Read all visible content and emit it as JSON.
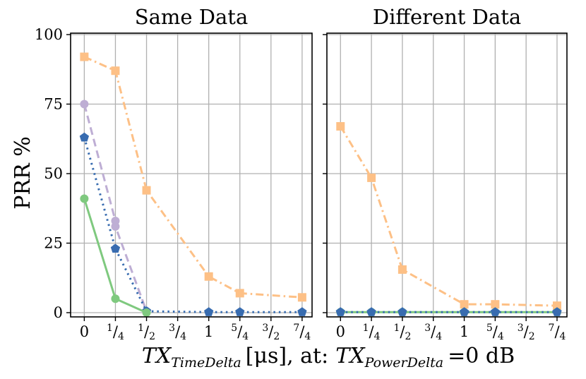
{
  "figure": {
    "xlabel_main": "TX",
    "xlabel_main_sub": "TimeDelta",
    "xlabel_unit": "[μs], at:",
    "xlabel_power": "TX",
    "xlabel_power_sub": "PowerDelta",
    "xlabel_tail": "=0 dB",
    "ylabel": "PRR %"
  },
  "chart_data": [
    {
      "type": "line",
      "title": "Same Data",
      "x": [
        0,
        0.25,
        0.5,
        0.75,
        1,
        1.25,
        1.5,
        1.75
      ],
      "xtick_labels": [
        "0",
        "1/4",
        "1/2",
        "3/4",
        "1",
        "5/4",
        "3/2",
        "7/4"
      ],
      "yticks": [
        0,
        25,
        50,
        75,
        100
      ],
      "ylim": [
        0,
        100
      ],
      "grid": true,
      "series": [
        {
          "color": "#fdc086",
          "marker": "square",
          "dash": "dashdot",
          "x": [
            0,
            0.25,
            0.5,
            1,
            1.25,
            1.75
          ],
          "y": [
            92,
            87,
            44,
            13,
            7,
            5.5
          ]
        },
        {
          "color": "#beaed4",
          "marker": "circle",
          "dash": "dashed",
          "x": [
            0,
            0.25,
            0.25,
            0.5
          ],
          "y": [
            75,
            33,
            31,
            0.5
          ]
        },
        {
          "color": "#386cb0",
          "marker": "pentagon",
          "dash": "dotted",
          "x": [
            0,
            0.25,
            0.5,
            1,
            1.25,
            1.75
          ],
          "y": [
            63,
            23,
            0.5,
            0.2,
            0.2,
            0.2
          ]
        },
        {
          "color": "#7fc97f",
          "marker": "circle",
          "dash": "solid",
          "x": [
            0,
            0.25,
            0.5
          ],
          "y": [
            41,
            5,
            0
          ]
        }
      ]
    },
    {
      "type": "line",
      "title": "Different Data",
      "x": [
        0,
        0.25,
        0.5,
        0.75,
        1,
        1.25,
        1.5,
        1.75
      ],
      "xtick_labels": [
        "0",
        "1/4",
        "1/2",
        "3/4",
        "1",
        "5/4",
        "3/2",
        "7/4"
      ],
      "yticks": [
        0,
        25,
        50,
        75,
        100
      ],
      "ylim": [
        0,
        100
      ],
      "grid": true,
      "series": [
        {
          "color": "#fdc086",
          "marker": "square",
          "dash": "dashdot",
          "x": [
            0,
            0.25,
            0.5,
            1,
            1.25,
            1.75
          ],
          "y": [
            67,
            48.5,
            15.5,
            3,
            3,
            2.5
          ]
        },
        {
          "color": "#7fc97f",
          "marker": "circle",
          "dash": "solid",
          "x": [
            0,
            0.25,
            0.5,
            1,
            1.25,
            1.75
          ],
          "y": [
            0.2,
            0.2,
            0.2,
            0.2,
            0.2,
            0.2
          ]
        },
        {
          "color": "#386cb0",
          "marker": "pentagon",
          "dash": "dotted",
          "x": [
            0,
            0.25,
            0.5,
            1,
            1.25,
            1.75
          ],
          "y": [
            0.2,
            0.2,
            0.2,
            0.2,
            0.2,
            0.2
          ]
        }
      ]
    }
  ]
}
